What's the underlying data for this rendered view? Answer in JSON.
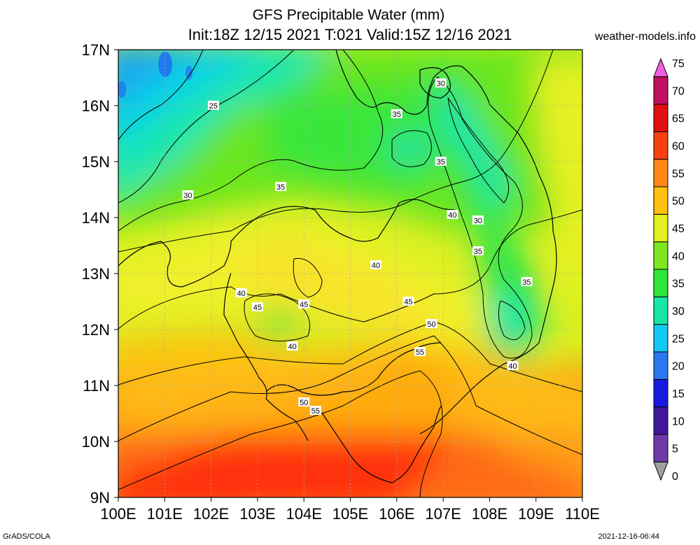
{
  "title": {
    "line1": "GFS Precipitable Water (mm)",
    "line2": "Init:18Z 12/15 2021 T:021 Valid:15Z 12/16 2021"
  },
  "site": "weather-models.info",
  "footer": {
    "credit": "GrADS/COLA",
    "timestamp": "2021-12-16-06:44"
  },
  "axes": {
    "x_ticks": [
      "100E",
      "101E",
      "102E",
      "103E",
      "104E",
      "105E",
      "106E",
      "107E",
      "108E",
      "109E",
      "110E"
    ],
    "y_ticks": [
      "9N",
      "10N",
      "11N",
      "12N",
      "13N",
      "14N",
      "15N",
      "16N",
      "17N"
    ]
  },
  "colorbar": {
    "labels": [
      "0",
      "5",
      "10",
      "15",
      "20",
      "25",
      "30",
      "35",
      "40",
      "45",
      "50",
      "55",
      "60",
      "65",
      "70",
      "75"
    ],
    "colors": [
      "#a0a0a0",
      "#6e3aa8",
      "#40189a",
      "#1a1ae0",
      "#2a78f0",
      "#13c8f2",
      "#16e6a6",
      "#2ee63a",
      "#7ee61e",
      "#e6f020",
      "#ffc010",
      "#ff8818",
      "#f84010",
      "#e01010",
      "#c01060",
      "#f060e0"
    ]
  },
  "contour_labels": [
    {
      "text": "25",
      "lon": 102.05,
      "lat": 16.0
    },
    {
      "text": "30",
      "lon": 101.5,
      "lat": 14.4
    },
    {
      "text": "30",
      "lon": 106.95,
      "lat": 16.4
    },
    {
      "text": "30",
      "lon": 107.75,
      "lat": 13.95
    },
    {
      "text": "35",
      "lon": 103.5,
      "lat": 14.55
    },
    {
      "text": "35",
      "lon": 106.0,
      "lat": 15.85
    },
    {
      "text": "35",
      "lon": 106.95,
      "lat": 15.0
    },
    {
      "text": "35",
      "lon": 107.75,
      "lat": 13.4
    },
    {
      "text": "35",
      "lon": 108.8,
      "lat": 12.85
    },
    {
      "text": "40",
      "lon": 107.2,
      "lat": 14.05
    },
    {
      "text": "40",
      "lon": 105.55,
      "lat": 13.15
    },
    {
      "text": "40",
      "lon": 102.65,
      "lat": 12.65
    },
    {
      "text": "40",
      "lon": 103.75,
      "lat": 11.7
    },
    {
      "text": "40",
      "lon": 108.5,
      "lat": 11.35
    },
    {
      "text": "45",
      "lon": 103.0,
      "lat": 12.4
    },
    {
      "text": "45",
      "lon": 104.0,
      "lat": 12.45
    },
    {
      "text": "45",
      "lon": 106.25,
      "lat": 12.5
    },
    {
      "text": "50",
      "lon": 106.75,
      "lat": 12.1
    },
    {
      "text": "50",
      "lon": 104.0,
      "lat": 10.7
    },
    {
      "text": "55",
      "lon": 106.5,
      "lat": 11.6
    },
    {
      "text": "55",
      "lon": 104.25,
      "lat": 10.55
    }
  ]
}
